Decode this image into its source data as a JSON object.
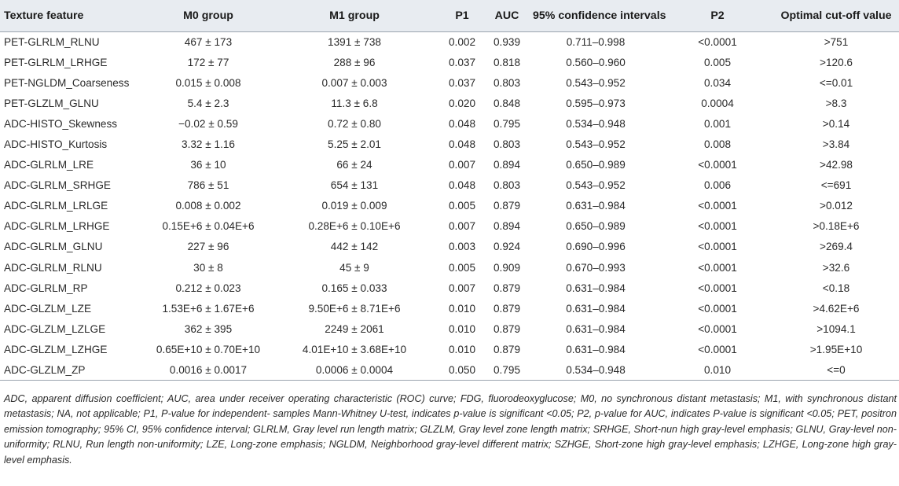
{
  "table": {
    "headers": [
      "Texture feature",
      "M0 group",
      "M1 group",
      "P1",
      "AUC",
      "95% confidence intervals",
      "P2",
      "Optimal cut-off value"
    ],
    "rows": [
      [
        "PET-GLRLM_RLNU",
        "467 ± 173",
        "1391 ± 738",
        "0.002",
        "0.939",
        "0.711–0.998",
        "<0.0001",
        ">751"
      ],
      [
        "PET-GLRLM_LRHGE",
        "172 ± 77",
        "288 ± 96",
        "0.037",
        "0.818",
        "0.560–0.960",
        "0.005",
        ">120.6"
      ],
      [
        "PET-NGLDM_Coarseness",
        "0.015 ± 0.008",
        "0.007 ± 0.003",
        "0.037",
        "0.803",
        "0.543–0.952",
        "0.034",
        "<=0.01"
      ],
      [
        "PET-GLZLM_GLNU",
        "5.4 ± 2.3",
        "11.3 ± 6.8",
        "0.020",
        "0.848",
        "0.595–0.973",
        "0.0004",
        ">8.3"
      ],
      [
        "ADC-HISTO_Skewness",
        "−0.02 ± 0.59",
        "0.72 ± 0.80",
        "0.048",
        "0.795",
        "0.534–0.948",
        "0.001",
        ">0.14"
      ],
      [
        "ADC-HISTO_Kurtosis",
        "3.32 ± 1.16",
        "5.25 ± 2.01",
        "0.048",
        "0.803",
        "0.543–0.952",
        "0.008",
        ">3.84"
      ],
      [
        "ADC-GLRLM_LRE",
        "36 ± 10",
        "66 ± 24",
        "0.007",
        "0.894",
        "0.650–0.989",
        "<0.0001",
        ">42.98"
      ],
      [
        "ADC-GLRLM_SRHGE",
        "786 ± 51",
        "654 ± 131",
        "0.048",
        "0.803",
        "0.543–0.952",
        "0.006",
        "<=691"
      ],
      [
        "ADC-GLRLM_LRLGE",
        "0.008 ± 0.002",
        "0.019 ± 0.009",
        "0.005",
        "0.879",
        "0.631–0.984",
        "<0.0001",
        ">0.012"
      ],
      [
        "ADC-GLRLM_LRHGE",
        "0.15E+6 ± 0.04E+6",
        "0.28E+6 ± 0.10E+6",
        "0.007",
        "0.894",
        "0.650–0.989",
        "<0.0001",
        ">0.18E+6"
      ],
      [
        "ADC-GLRLM_GLNU",
        "227 ± 96",
        "442 ± 142",
        "0.003",
        "0.924",
        "0.690–0.996",
        "<0.0001",
        ">269.4"
      ],
      [
        "ADC-GLRLM_RLNU",
        "30 ± 8",
        "45 ± 9",
        "0.005",
        "0.909",
        "0.670–0.993",
        "<0.0001",
        ">32.6"
      ],
      [
        "ADC-GLRLM_RP",
        "0.212 ± 0.023",
        "0.165 ± 0.033",
        "0.007",
        "0.879",
        "0.631–0.984",
        "<0.0001",
        "<0.18"
      ],
      [
        "ADC-GLZLM_LZE",
        "1.53E+6 ± 1.67E+6",
        "9.50E+6 ± 8.71E+6",
        "0.010",
        "0.879",
        "0.631–0.984",
        "<0.0001",
        ">4.62E+6"
      ],
      [
        "ADC-GLZLM_LZLGE",
        "362 ± 395",
        "2249 ± 2061",
        "0.010",
        "0.879",
        "0.631–0.984",
        "<0.0001",
        ">1094.1"
      ],
      [
        "ADC-GLZLM_LZHGE",
        "0.65E+10 ± 0.70E+10",
        "4.01E+10 ± 3.68E+10",
        "0.010",
        "0.879",
        "0.631–0.984",
        "<0.0001",
        ">1.95E+10"
      ],
      [
        "ADC-GLZLM_ZP",
        "0.0016 ± 0.0017",
        "0.0006 ± 0.0004",
        "0.050",
        "0.795",
        "0.534–0.948",
        "0.010",
        "<=0"
      ]
    ]
  },
  "footnote": "ADC, apparent diffusion coefficient; AUC, area under receiver operating characteristic (ROC) curve; FDG, fluorodeoxyglucose; M0, no synchronous distant metastasis; M1, with synchronous distant metastasis; NA, not applicable; P1, P-value for independent- samples Mann-Whitney U-test, indicates p-value is significant <0.05; P2, p-value for AUC, indicates P-value is significant <0.05; PET, positron emission tomography; 95% CI, 95% confidence interval; GLRLM, Gray level run length matrix; GLZLM, Gray level zone length matrix; SRHGE, Short-nun high gray-level emphasis; GLNU, Gray-level non-uniformity; RLNU, Run length non-uniformity; LZE, Long-zone emphasis; NGLDM, Neighborhood gray-level different matrix; SZHGE, Short-zone high gray-level emphasis; LZHGE, Long-zone high gray-level emphasis."
}
